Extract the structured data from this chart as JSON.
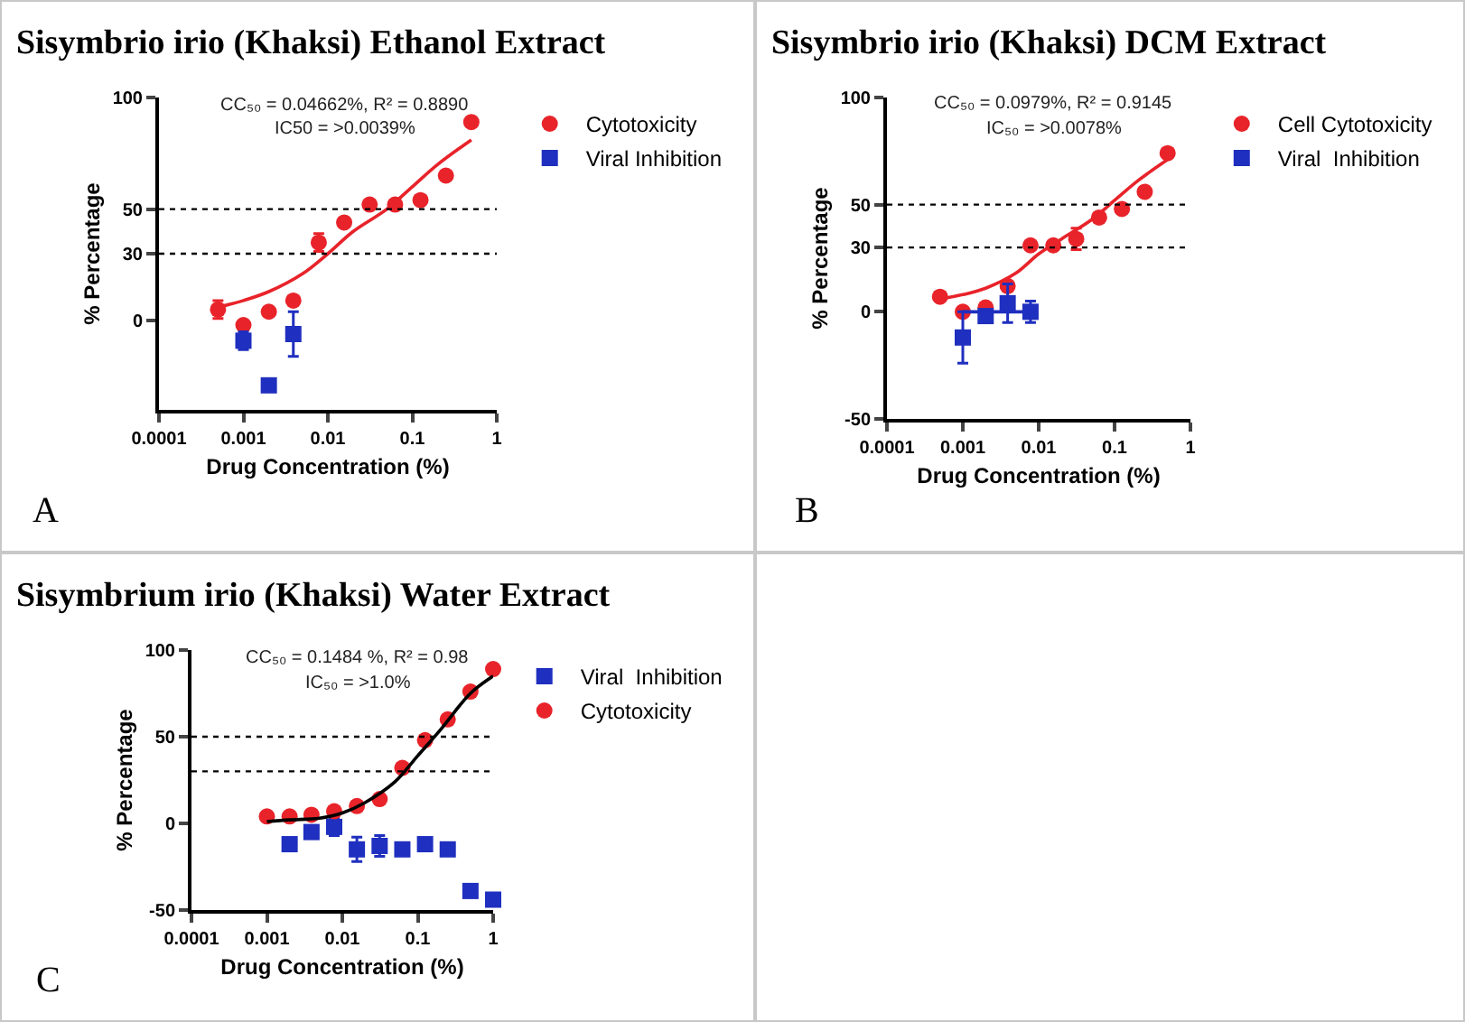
{
  "chart_data": [
    {
      "type": "scatter",
      "title": "Sisymbrio irio (Khaksi) Ethanol Extract",
      "xlabel": "Drug Concentration (%)",
      "ylabel": "% Percentage",
      "log": "x",
      "xlim": [
        0.0001,
        1
      ],
      "xticks": [
        0.0001,
        0.001,
        0.01,
        0.1,
        1
      ],
      "ylim": [
        -40,
        100
      ],
      "yticks": [
        0,
        30,
        50,
        100
      ],
      "grid": false,
      "legend": "top right",
      "ref_lines": [
        {
          "axis": "y",
          "value": 50,
          "color": "#000000",
          "line_style": "dotted"
        },
        {
          "axis": "y",
          "value": 30,
          "color": "#000000",
          "line_style": "dotted"
        }
      ],
      "annotations": [
        "CC₅₀ = 0.04662%, R² = 0.8890",
        "IC50 = >0.0039%",
        "A"
      ],
      "series": [
        {
          "name": "Cytotoxicity",
          "color": "#e8232a",
          "x": [
            0.0005,
            0.001,
            0.002,
            0.0039,
            0.0078,
            0.0156,
            0.03125,
            0.0625,
            0.125,
            0.25,
            0.5
          ],
          "values": [
            5,
            -2,
            4,
            9,
            35,
            44,
            52,
            52,
            54,
            65,
            89
          ],
          "errors": [
            4,
            null,
            null,
            null,
            4,
            null,
            null,
            null,
            null,
            null,
            null
          ]
        },
        {
          "name": "Viral Inhibition",
          "color": "#1f2fbf",
          "x": [
            0.001,
            0.002,
            0.0039
          ],
          "values": [
            -9,
            -29,
            -6
          ],
          "errors": [
            4,
            null,
            [
              -16,
              4
            ]
          ]
        },
        {
          "type": "line",
          "color": "#e8232a",
          "x": [
            0.0005,
            0.001,
            0.002,
            0.005,
            0.01,
            0.02,
            0.05,
            0.1,
            0.2,
            0.5
          ],
          "values": [
            6,
            9,
            13,
            21,
            30,
            40,
            50,
            60,
            70,
            81
          ]
        }
      ]
    },
    {
      "type": "scatter",
      "title": "Sisymbrio irio (Khaksi) DCM Extract",
      "xlabel": "Drug Concentration (%)",
      "ylabel": "% Percentage",
      "log": "x",
      "xlim": [
        0.0001,
        1
      ],
      "xticks": [
        0.0001,
        0.001,
        0.01,
        0.1,
        1
      ],
      "ylim": [
        -50,
        100
      ],
      "yticks": [
        -50,
        0,
        30,
        50,
        100
      ],
      "grid": false,
      "legend": "top right",
      "ref_lines": [
        {
          "axis": "y",
          "value": 50,
          "color": "#000000",
          "line_style": "dotted"
        },
        {
          "axis": "y",
          "value": 30,
          "color": "#000000",
          "line_style": "dotted"
        }
      ],
      "annotations": [
        "CC₅₀ = 0.0979%, R² = 0.9145",
        "IC₅₀ = >0.0078%",
        "B"
      ],
      "series": [
        {
          "name": "Cell Cytotoxicity",
          "color": "#e8232a",
          "marker": "circle",
          "x": [
            0.0005,
            0.001,
            0.002,
            0.0039,
            0.0078,
            0.0156,
            0.03125,
            0.0625,
            0.125,
            0.25,
            0.5
          ],
          "values": [
            7,
            0,
            2,
            12,
            31,
            31,
            34,
            44,
            48,
            56,
            74
          ],
          "errors": [
            null,
            null,
            null,
            null,
            null,
            null,
            5,
            null,
            null,
            null,
            null
          ]
        },
        {
          "name": "Viral  Inhibition",
          "color": "#1f2fbf",
          "marker": "square",
          "x": [
            0.001,
            0.002,
            0.0039,
            0.0078
          ],
          "values": [
            -12,
            -2,
            4,
            0
          ],
          "errors": [
            12,
            null,
            9,
            5
          ]
        },
        {
          "type": "line",
          "color": "#e8232a",
          "x": [
            0.0005,
            0.001,
            0.002,
            0.005,
            0.01,
            0.02,
            0.05,
            0.1,
            0.2,
            0.5
          ],
          "values": [
            6,
            8,
            11,
            18,
            27,
            34,
            43,
            52,
            61,
            71
          ]
        },
        {
          "type": "line",
          "color": "#1f2fbf",
          "x": [
            0.001,
            0.0078
          ],
          "values": [
            0,
            0
          ]
        }
      ]
    },
    {
      "type": "scatter",
      "title": "Sisymbrium irio (Khaksi) Water Extract",
      "xlabel": "Drug Concentration (%)",
      "ylabel": "% Percentage",
      "log": "x",
      "xlim": [
        0.0001,
        1
      ],
      "xticks": [
        0.0001,
        0.001,
        0.01,
        0.1,
        1
      ],
      "ylim": [
        -50,
        100
      ],
      "yticks": [
        -50,
        0,
        50,
        100
      ],
      "grid": false,
      "legend": "top right",
      "ref_lines": [
        {
          "axis": "y",
          "value": 50,
          "color": "#000000",
          "line_style": "dotted"
        },
        {
          "axis": "y",
          "value": 30,
          "color": "#000000",
          "line_style": "dotted"
        }
      ],
      "annotations": [
        "CC₅₀ = 0.1484 %, R² = 0.98",
        "IC₅₀ = >1.0%",
        "C"
      ],
      "series": [
        {
          "name": "Viral  Inhibition",
          "color": "#1f2fbf",
          "marker": "square",
          "x": [
            0.002,
            0.0039,
            0.0078,
            0.0156,
            0.03125,
            0.0625,
            0.125,
            0.25,
            0.5,
            1
          ],
          "values": [
            -12,
            -5,
            -2,
            -15,
            -13,
            -15,
            -12,
            -15,
            -39,
            -44
          ],
          "errors": [
            null,
            null,
            5,
            7,
            6,
            null,
            null,
            null,
            null,
            null
          ]
        },
        {
          "name": "Cytotoxicity",
          "color": "#e8232a",
          "marker": "circle",
          "x": [
            0.001,
            0.002,
            0.0039,
            0.0078,
            0.0156,
            0.03125,
            0.0625,
            0.125,
            0.25,
            0.5,
            1
          ],
          "values": [
            4,
            4,
            5,
            7,
            10,
            14,
            32,
            48,
            60,
            76,
            89
          ],
          "errors": [
            null,
            null,
            null,
            null,
            null,
            null,
            null,
            null,
            null,
            null,
            null
          ]
        },
        {
          "type": "line",
          "color": "#000000",
          "x": [
            0.001,
            0.002,
            0.005,
            0.01,
            0.02,
            0.05,
            0.1,
            0.2,
            0.5,
            1
          ],
          "values": [
            1,
            2,
            3,
            6,
            12,
            24,
            39,
            54,
            75,
            85
          ]
        }
      ]
    }
  ]
}
